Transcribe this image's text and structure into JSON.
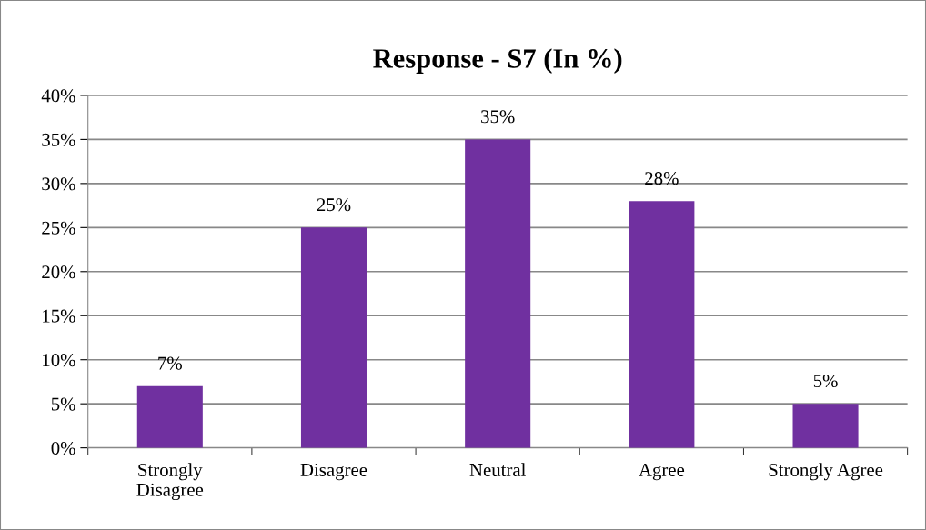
{
  "chart_data": {
    "type": "bar",
    "title": "Response - S7 (In %)",
    "categories": [
      "Strongly\nDisagree",
      "Disagree",
      "Neutral",
      "Agree",
      "Strongly Agree"
    ],
    "values": [
      7,
      25,
      35,
      28,
      5
    ],
    "color": "#7030a0",
    "ylim": [
      0,
      40
    ],
    "yticks": [
      {
        "value": 0,
        "label": "0%"
      },
      {
        "value": 5,
        "label": "5%"
      },
      {
        "value": 10,
        "label": "10%"
      },
      {
        "value": 15,
        "label": "15%"
      },
      {
        "value": 20,
        "label": "20%"
      },
      {
        "value": 25,
        "label": "25%"
      },
      {
        "value": 30,
        "label": "30%"
      },
      {
        "value": 35,
        "label": "35%"
      },
      {
        "value": 40,
        "label": "40%"
      }
    ],
    "value_labels": [
      "7%",
      "25%",
      "35%",
      "28%",
      "5%"
    ],
    "grid": "y",
    "legend": false
  }
}
